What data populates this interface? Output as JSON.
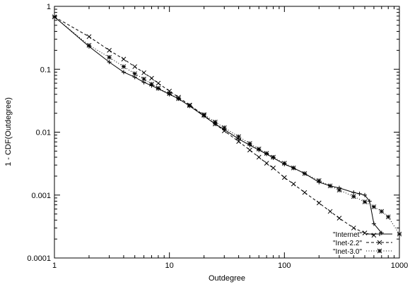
{
  "chart_data": {
    "type": "line",
    "title": "",
    "xlabel": "Outdegree",
    "ylabel": "1 - CDF(Outdegree)",
    "xscale": "log",
    "yscale": "log",
    "xlim": [
      1,
      1000
    ],
    "ylim": [
      0.0001,
      1
    ],
    "x_ticks": [
      {
        "value": 1,
        "label": "1"
      },
      {
        "value": 10,
        "label": "10"
      },
      {
        "value": 100,
        "label": "100"
      },
      {
        "value": 1000,
        "label": "1000"
      }
    ],
    "y_ticks": [
      {
        "value": 1,
        "label": "1"
      },
      {
        "value": 0.1,
        "label": "0.1"
      },
      {
        "value": 0.01,
        "label": "0.01"
      },
      {
        "value": 0.001,
        "label": "0.001"
      },
      {
        "value": 0.0001,
        "label": "0.0001"
      }
    ],
    "grid": false,
    "legend_position": "bottom-right",
    "series": [
      {
        "name": "\"Internet\"",
        "line_style": "solid",
        "marker": "plus",
        "x": [
          1,
          2,
          3,
          4,
          5,
          6,
          7,
          8,
          10,
          12,
          15,
          20,
          25,
          30,
          40,
          50,
          60,
          70,
          80,
          100,
          120,
          150,
          200,
          250,
          300,
          400,
          450,
          500,
          550,
          600,
          700
        ],
        "y": [
          0.68,
          0.23,
          0.13,
          0.09,
          0.075,
          0.062,
          0.055,
          0.049,
          0.04,
          0.034,
          0.026,
          0.018,
          0.0135,
          0.011,
          0.0078,
          0.0062,
          0.0052,
          0.0045,
          0.0039,
          0.0031,
          0.0027,
          0.0022,
          0.0016,
          0.0014,
          0.0013,
          0.0011,
          0.00105,
          0.001,
          0.0008,
          0.00035,
          0.00025
        ]
      },
      {
        "name": "\"Inet-2.2\"",
        "line_style": "dashed",
        "marker": "x",
        "x": [
          1,
          2,
          3,
          4,
          5,
          6,
          7,
          8,
          10,
          12,
          15,
          20,
          25,
          30,
          40,
          50,
          60,
          70,
          80,
          100,
          120,
          150,
          200,
          250,
          300,
          400,
          500,
          600
        ],
        "y": [
          0.68,
          0.33,
          0.2,
          0.145,
          0.11,
          0.088,
          0.072,
          0.06,
          0.045,
          0.036,
          0.027,
          0.0185,
          0.0135,
          0.0105,
          0.0071,
          0.0052,
          0.004,
          0.0032,
          0.0027,
          0.0019,
          0.0015,
          0.0011,
          0.00075,
          0.00055,
          0.00043,
          0.0003,
          0.00025,
          0.00023
        ]
      },
      {
        "name": "\"Inet-3.0\"",
        "line_style": "dotted",
        "marker": "star",
        "x": [
          1,
          2,
          3,
          4,
          5,
          6,
          7,
          8,
          10,
          12,
          15,
          20,
          25,
          30,
          40,
          50,
          60,
          70,
          80,
          100,
          120,
          150,
          200,
          250,
          300,
          400,
          500,
          600,
          700,
          800,
          1000
        ],
        "y": [
          0.68,
          0.24,
          0.155,
          0.11,
          0.085,
          0.07,
          0.058,
          0.05,
          0.041,
          0.034,
          0.0265,
          0.019,
          0.0145,
          0.0118,
          0.0085,
          0.0066,
          0.0054,
          0.0046,
          0.004,
          0.0032,
          0.0027,
          0.0022,
          0.0017,
          0.0014,
          0.0012,
          0.00095,
          0.00078,
          0.00065,
          0.00055,
          0.00045,
          0.00024
        ]
      }
    ]
  }
}
